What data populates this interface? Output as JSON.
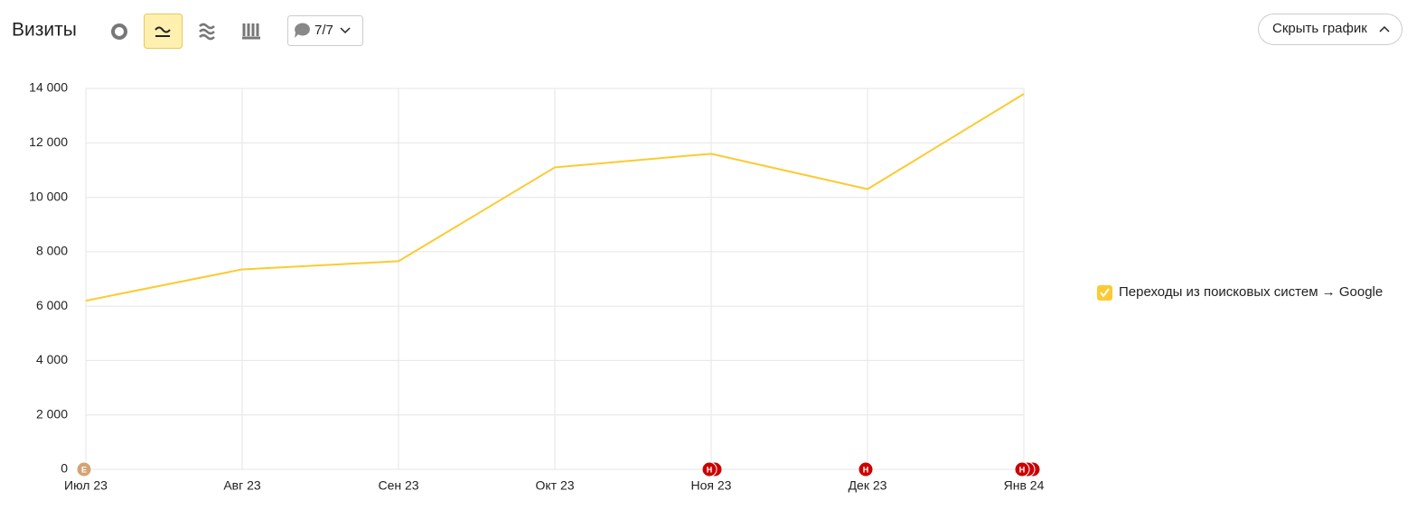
{
  "toolbar": {
    "title": "Визиты",
    "annotations_counter": "7/7",
    "hide_button": "Скрыть график"
  },
  "chart_data": {
    "type": "line",
    "categories": [
      "Июл 23",
      "Авг 23",
      "Сен 23",
      "Окт 23",
      "Ноя 23",
      "Дек 23",
      "Янв 24"
    ],
    "series": [
      {
        "name": "Переходы из поисковых систем → Google",
        "color": "#fcca32",
        "values": [
          6200,
          7350,
          7650,
          11100,
          11600,
          10300,
          13800
        ]
      }
    ],
    "ylim": [
      0,
      14000
    ],
    "yticks": [
      0,
      {
        "value": 2000,
        "label": "2 000"
      },
      {
        "value": 4000,
        "label": "4 000"
      },
      {
        "value": 6000,
        "label": "6 000"
      },
      {
        "value": 8000,
        "label": "8 000"
      },
      {
        "value": 10000,
        "label": "10 000"
      },
      {
        "value": 12000,
        "label": "12 000"
      },
      {
        "value": 14000,
        "label": "14 000"
      }
    ],
    "grid": true,
    "legend": "right",
    "events": [
      {
        "x": "Июл 23",
        "label": "E",
        "count": 1,
        "color": "#d4a373"
      },
      {
        "x": "Ноя 23",
        "label": "Н",
        "count": 2,
        "color": "#cc0000"
      },
      {
        "x": "Дек 23",
        "label": "Н",
        "count": 1,
        "color": "#cc0000"
      },
      {
        "x": "Янв 24",
        "label": "Н",
        "count": 3,
        "color": "#cc0000"
      }
    ]
  }
}
